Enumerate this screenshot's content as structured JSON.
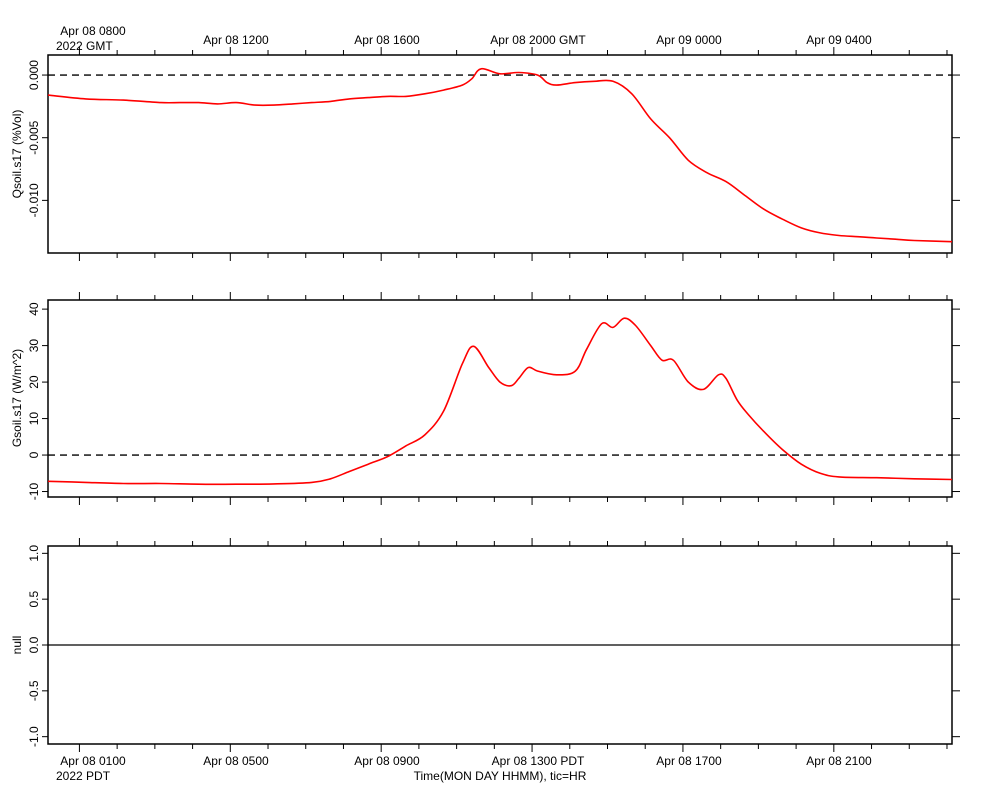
{
  "top_axis": {
    "zone_label": "2022 GMT",
    "ticks": [
      "Apr 08 0800",
      "Apr 08 1200",
      "Apr 08 1600",
      "Apr 08 2000 GMT",
      "Apr 09 0000",
      "Apr 09 0400"
    ]
  },
  "bottom_axis": {
    "zone_label": "2022 PDT",
    "ticks": [
      "Apr 08 0100",
      "Apr 08 0500",
      "Apr 08 0900",
      "Apr 08 1300 PDT",
      "Apr 08 1700",
      "Apr 08 2100"
    ],
    "xlabel": "Time(MON DAY HHMM), tic=HR"
  },
  "chart_data": [
    {
      "type": "line",
      "ylabel": "Qsoil.s17 (%Vol)",
      "ylim": [
        -0.0142,
        0.0016
      ],
      "yticks": [
        0.0,
        -0.005,
        -0.01
      ],
      "ytick_labels": [
        "0.000",
        "-0.005",
        "-0.010"
      ],
      "xlim_hours_pdt": [
        0,
        24
      ],
      "reference_line": 0,
      "color": "#ff0000",
      "series": [
        {
          "x": [
            0,
            1,
            2,
            3,
            3.5,
            4,
            4.5,
            5,
            5.5,
            6,
            6.5,
            7,
            7.5,
            8,
            8.5,
            9,
            9.5,
            10,
            10.5,
            11,
            11.25,
            11.5,
            12,
            12.5,
            13,
            13.25,
            13.5,
            14,
            14.5,
            15,
            15.5,
            16,
            16.5,
            17,
            17.5,
            18,
            18.5,
            19,
            19.5,
            20,
            20.5,
            21,
            21.5,
            22,
            22.5,
            23,
            24
          ],
          "y": [
            -0.0016,
            -0.0019,
            -0.002,
            -0.0022,
            -0.0022,
            -0.0022,
            -0.0023,
            -0.0022,
            -0.0024,
            -0.0024,
            -0.0023,
            -0.0022,
            -0.0021,
            -0.0019,
            -0.0018,
            -0.0017,
            -0.0017,
            -0.0015,
            -0.0012,
            -0.0008,
            -0.0003,
            0.0005,
            0.0001,
            0.0002,
            0.0,
            -0.0006,
            -0.0008,
            -0.0006,
            -0.0005,
            -0.0005,
            -0.0015,
            -0.0035,
            -0.005,
            -0.0068,
            -0.0078,
            -0.0085,
            -0.0096,
            -0.0107,
            -0.0115,
            -0.0122,
            -0.0126,
            -0.0128,
            -0.0129,
            -0.013,
            -0.0131,
            -0.0132,
            -0.0133
          ]
        }
      ]
    },
    {
      "type": "line",
      "ylabel": "Gsoil.s17 (W/m^2)",
      "ylim": [
        -11.5,
        42.5
      ],
      "yticks": [
        40,
        30,
        20,
        10,
        0,
        -10
      ],
      "ytick_labels": [
        "40",
        "30",
        "20",
        "10",
        "0",
        "-10"
      ],
      "xlim_hours_pdt": [
        0,
        24
      ],
      "reference_line": 0,
      "color": "#ff0000",
      "series": [
        {
          "x": [
            0,
            1,
            2,
            3,
            4,
            5,
            6,
            7,
            7.5,
            8,
            8.5,
            9,
            9.5,
            10,
            10.5,
            11,
            11.3,
            11.7,
            12,
            12.3,
            12.5,
            12.75,
            13,
            13.5,
            14,
            14.3,
            14.7,
            15,
            15.3,
            15.6,
            16,
            16.3,
            16.6,
            17,
            17.4,
            17.8,
            18,
            18.3,
            18.6,
            19,
            19.5,
            20,
            20.5,
            21,
            22,
            23,
            24
          ],
          "y": [
            -7.2,
            -7.5,
            -7.8,
            -7.8,
            -8.0,
            -8.0,
            -7.9,
            -7.5,
            -6.5,
            -4.5,
            -2.5,
            -0.5,
            2.5,
            5.5,
            12,
            25,
            29.8,
            24,
            20,
            19,
            21,
            24,
            23,
            22,
            23,
            29,
            36,
            35,
            37.5,
            35.5,
            30,
            26,
            26,
            20,
            18,
            22,
            21,
            15,
            11,
            6.5,
            1.5,
            -2.5,
            -5,
            -6,
            -6.2,
            -6.5,
            -6.7
          ]
        }
      ]
    },
    {
      "type": "line",
      "ylabel": "null",
      "ylim": [
        -1.08,
        1.08
      ],
      "yticks": [
        1.0,
        0.5,
        0.0,
        -0.5,
        -1.0
      ],
      "ytick_labels": [
        "1.0",
        "0.5",
        "0.0",
        "-0.5",
        "-1.0"
      ],
      "xlim_hours_pdt": [
        0,
        24
      ],
      "reference_line": 0,
      "series": []
    }
  ]
}
